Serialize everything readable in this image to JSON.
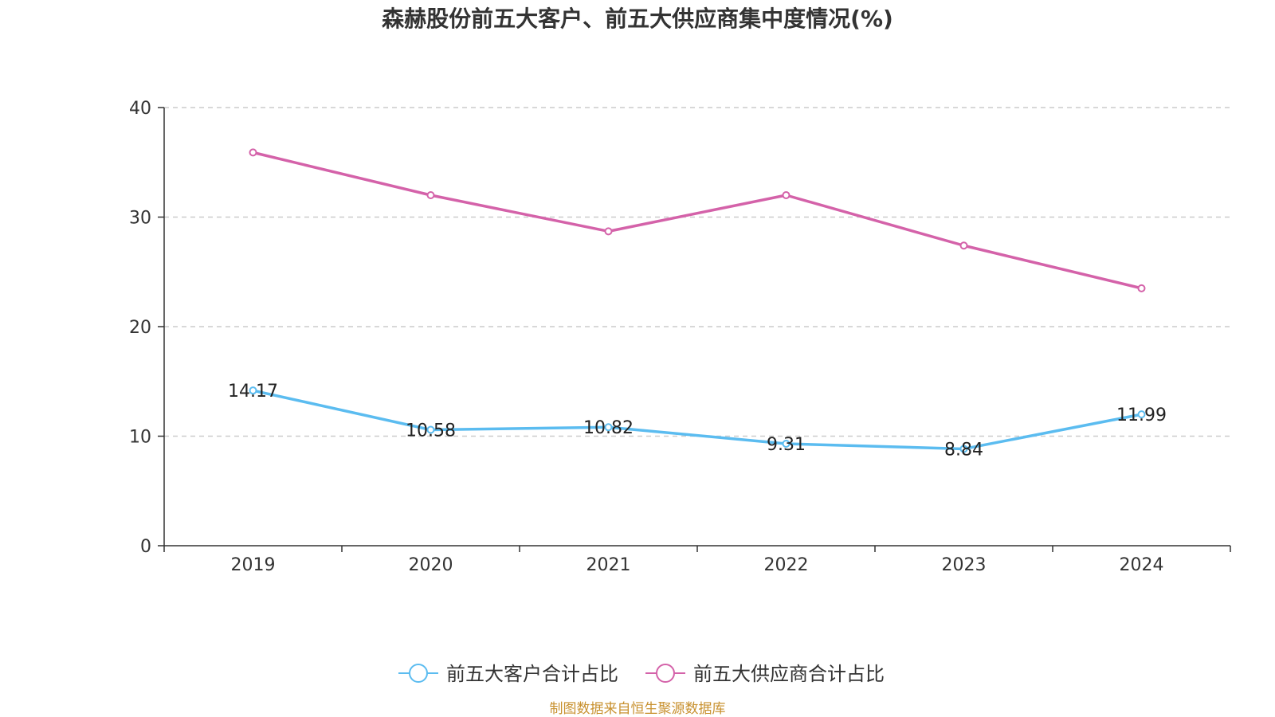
{
  "chart_data": {
    "type": "line",
    "title": "森赫股份前五大客户、前五大供应商集中度情况(%)",
    "categories": [
      "2019",
      "2020",
      "2021",
      "2022",
      "2023",
      "2024"
    ],
    "ylim": [
      0,
      40
    ],
    "yticks": [
      "0",
      "10",
      "20",
      "30",
      "40"
    ],
    "grid": true,
    "legend_position": "bottom",
    "series": [
      {
        "name": "前五大客户合计占比",
        "color": "#5bbcf0",
        "values": [
          14.17,
          10.58,
          10.82,
          9.31,
          8.84,
          11.99
        ],
        "labels": [
          "14.17",
          "10.58",
          "10.82",
          "9.31",
          "8.84",
          "11.99"
        ]
      },
      {
        "name": "前五大供应商合计占比",
        "color": "#d462a9",
        "values": [
          35.9,
          32.0,
          28.7,
          32.0,
          27.4,
          23.5
        ],
        "labels": []
      }
    ]
  },
  "footer": {
    "source": "制图数据来自恒生聚源数据库",
    "source_color": "#c8912f"
  }
}
